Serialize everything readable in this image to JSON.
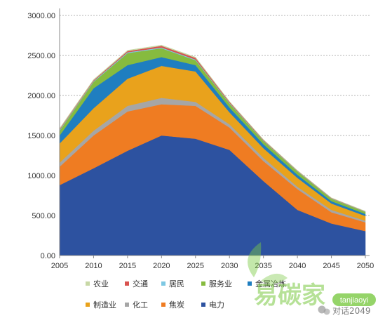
{
  "chart_data": {
    "type": "area",
    "stacked": true,
    "x": [
      2005,
      2010,
      2015,
      2020,
      2025,
      2030,
      2035,
      2040,
      2045,
      2050
    ],
    "ylim": [
      0,
      3000
    ],
    "yticks": [
      "0.00",
      "500.00",
      "1000.00",
      "1500.00",
      "2000.00",
      "2500.00",
      "3000.00"
    ],
    "xticks": [
      "2005",
      "2010",
      "2015",
      "2020",
      "2025",
      "2030",
      "2035",
      "2040",
      "2045",
      "2050"
    ],
    "grid": true,
    "legend_position": "bottom",
    "title": "",
    "xlabel": "",
    "ylabel": "",
    "series": [
      {
        "name": "电力",
        "color": "#2d52a0",
        "values": [
          880,
          1090,
          1310,
          1500,
          1460,
          1320,
          930,
          570,
          400,
          305
        ]
      },
      {
        "name": "焦炭",
        "color": "#ef7c22",
        "values": [
          230,
          410,
          490,
          390,
          410,
          280,
          250,
          260,
          140,
          110
        ]
      },
      {
        "name": "化工",
        "color": "#a6a6a6",
        "values": [
          50,
          60,
          70,
          80,
          50,
          40,
          40,
          30,
          30,
          20
        ]
      },
      {
        "name": "制造业",
        "color": "#e9a21c",
        "values": [
          240,
          280,
          340,
          400,
          380,
          150,
          120,
          110,
          80,
          60
        ]
      },
      {
        "name": "金属冶炼",
        "color": "#1f7ec0",
        "values": [
          100,
          250,
          170,
          110,
          80,
          60,
          50,
          40,
          30,
          25
        ]
      },
      {
        "name": "服务业",
        "color": "#86bb3f",
        "values": [
          60,
          80,
          150,
          110,
          60,
          50,
          40,
          40,
          30,
          25
        ]
      },
      {
        "name": "居民",
        "color": "#7ec8e3",
        "values": [
          10,
          10,
          10,
          10,
          10,
          8,
          6,
          5,
          4,
          3
        ]
      },
      {
        "name": "交通",
        "color": "#d9534f",
        "values": [
          10,
          10,
          15,
          20,
          20,
          12,
          8,
          5,
          4,
          3
        ]
      },
      {
        "name": "农业",
        "color": "#c8d8a6",
        "values": [
          10,
          10,
          10,
          10,
          10,
          8,
          6,
          5,
          4,
          3
        ]
      }
    ],
    "legend_order": [
      "农业",
      "交通",
      "居民",
      "服务业",
      "金属冶炼",
      "制造业",
      "化工",
      "焦炭",
      "电力"
    ]
  },
  "watermark": {
    "text": "易碳家",
    "handle": "tanjiaoyi",
    "account": "对话2049"
  }
}
